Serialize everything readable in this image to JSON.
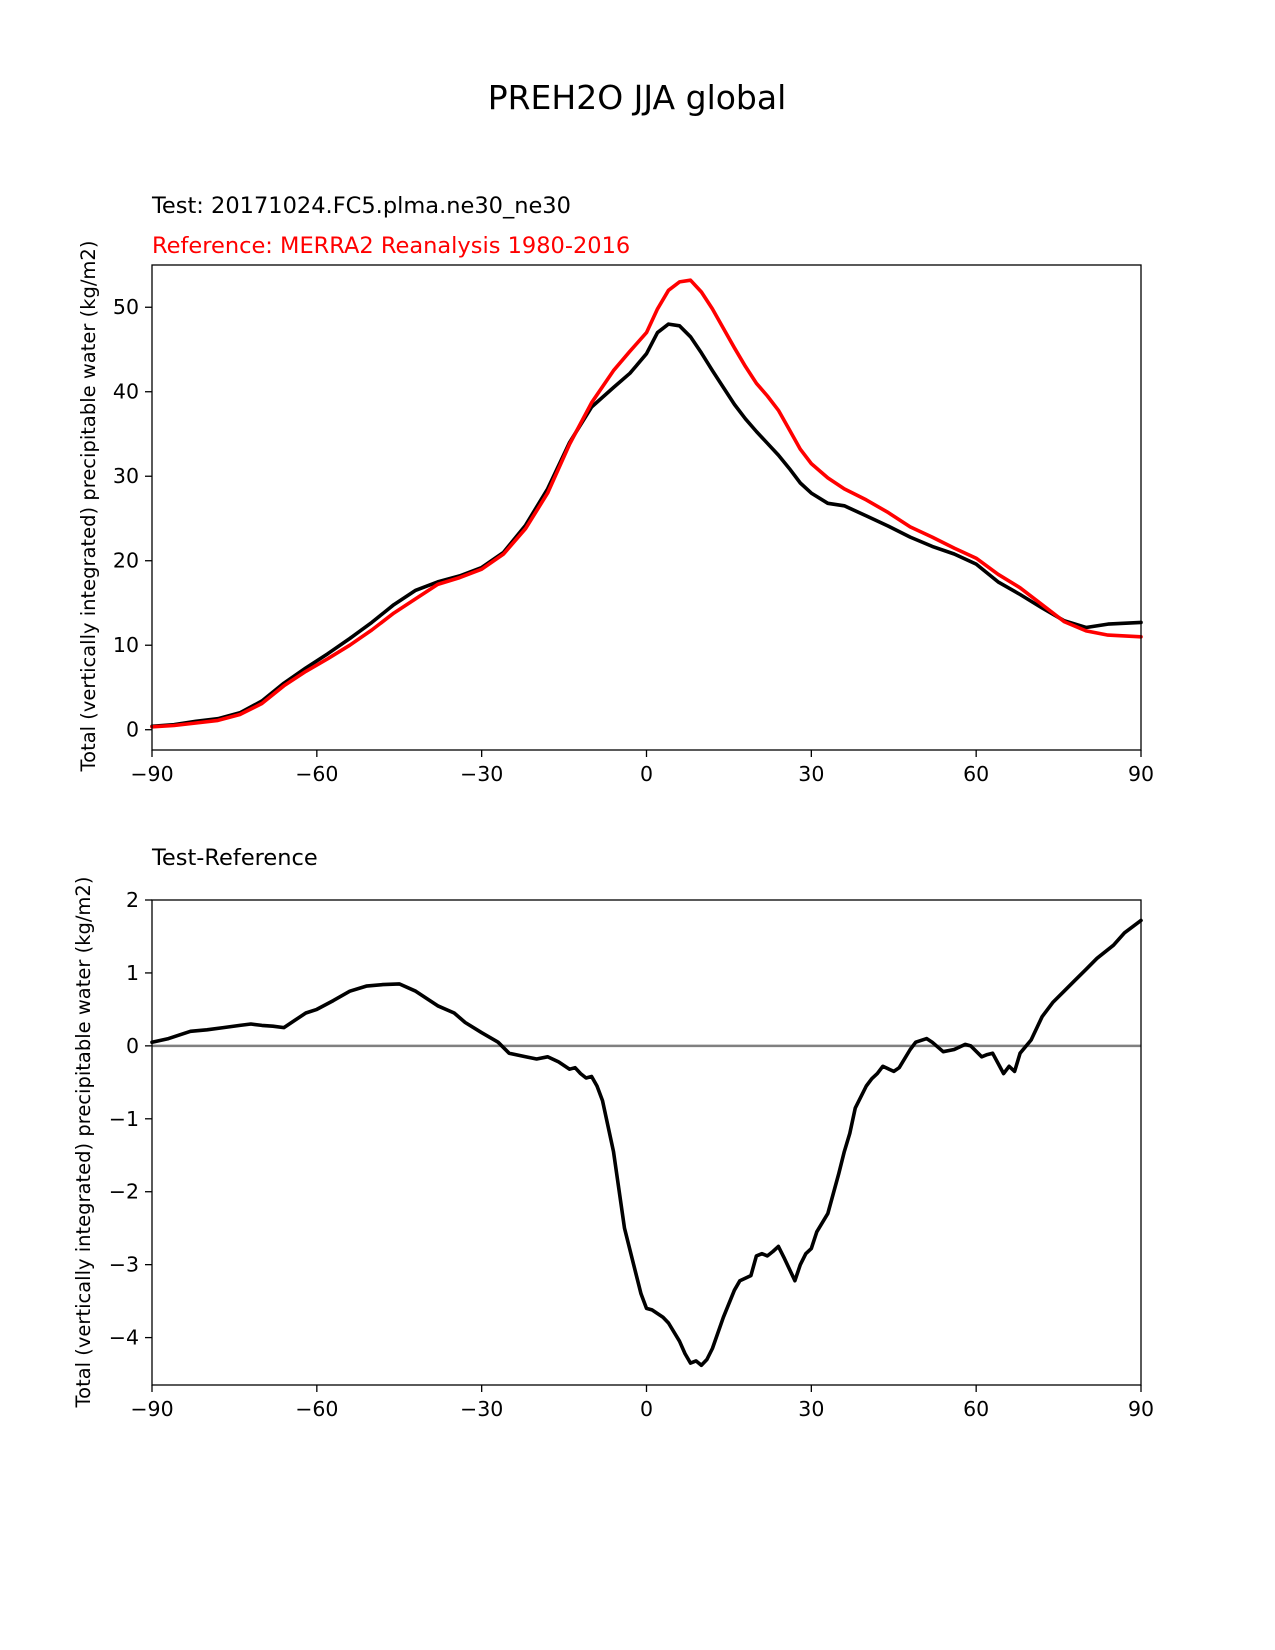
{
  "figure_title": "PREH2O JJA global",
  "colors": {
    "test": "#000000",
    "reference": "#ff0000",
    "zero_line": "#808080"
  },
  "chart_data": [
    {
      "type": "line",
      "test_label": "Test: 20171024.FC5.plma.ne30_ne30",
      "reference_label": "Reference: MERRA2 Reanalysis 1980-2016",
      "xlabel": "",
      "ylabel": "Total (vertically integrated) precipitable water (kg/m2)",
      "xlim": [
        -90,
        90
      ],
      "ylim": [
        -2.4,
        55
      ],
      "xticks": [
        -90,
        -60,
        -30,
        0,
        30,
        60,
        90
      ],
      "xtick_labels": [
        "−90",
        "−60",
        "−30",
        "0",
        "30",
        "60",
        "90"
      ],
      "yticks": [
        0,
        10,
        20,
        30,
        40,
        50
      ],
      "ytick_labels": [
        "0",
        "10",
        "20",
        "30",
        "40",
        "50"
      ],
      "series": [
        {
          "name": "Test",
          "color": "#000000",
          "x": [
            -90,
            -86,
            -82,
            -78,
            -74,
            -70,
            -66,
            -62,
            -58,
            -54,
            -50,
            -46,
            -42,
            -38,
            -34,
            -30,
            -26,
            -22,
            -18,
            -14,
            -10,
            -6,
            -3,
            0,
            2,
            4,
            6,
            8,
            10,
            12,
            14,
            16,
            18,
            20,
            22,
            24,
            26,
            28,
            30,
            33,
            36,
            40,
            44,
            48,
            52,
            56,
            60,
            64,
            68,
            72,
            76,
            80,
            84,
            90
          ],
          "values": [
            0.4,
            0.6,
            1.0,
            1.3,
            2.0,
            3.4,
            5.5,
            7.3,
            9.0,
            10.8,
            12.7,
            14.8,
            16.5,
            17.5,
            18.2,
            19.2,
            21.0,
            24.2,
            28.5,
            34.0,
            38.2,
            40.5,
            42.2,
            44.5,
            47.0,
            48.0,
            47.8,
            46.5,
            44.6,
            42.5,
            40.5,
            38.5,
            36.8,
            35.3,
            33.9,
            32.5,
            30.9,
            29.2,
            28.0,
            26.8,
            26.5,
            25.3,
            24.1,
            22.8,
            21.7,
            20.8,
            19.6,
            17.5,
            16.0,
            14.4,
            12.9,
            12.1,
            12.5,
            12.7
          ]
        },
        {
          "name": "Reference",
          "color": "#ff0000",
          "x": [
            -90,
            -86,
            -82,
            -78,
            -74,
            -70,
            -66,
            -62,
            -58,
            -54,
            -50,
            -46,
            -42,
            -38,
            -34,
            -30,
            -26,
            -22,
            -18,
            -14,
            -10,
            -6,
            -3,
            0,
            2,
            4,
            6,
            8,
            10,
            12,
            14,
            16,
            18,
            20,
            22,
            24,
            26,
            28,
            30,
            33,
            36,
            40,
            44,
            48,
            52,
            56,
            60,
            64,
            68,
            72,
            76,
            80,
            84,
            90
          ],
          "values": [
            0.35,
            0.5,
            0.8,
            1.1,
            1.8,
            3.1,
            5.2,
            6.9,
            8.4,
            10.0,
            11.8,
            13.8,
            15.5,
            17.2,
            18.0,
            19.0,
            20.8,
            23.8,
            28.0,
            33.8,
            38.7,
            42.5,
            44.8,
            47.0,
            49.8,
            52.0,
            53.0,
            53.2,
            51.8,
            49.8,
            47.5,
            45.2,
            43.0,
            41.0,
            39.5,
            37.8,
            35.5,
            33.2,
            31.5,
            29.8,
            28.5,
            27.2,
            25.7,
            24.0,
            22.8,
            21.5,
            20.3,
            18.4,
            16.8,
            14.8,
            12.8,
            11.7,
            11.2,
            11.0
          ]
        }
      ]
    },
    {
      "type": "line",
      "title": "Test-Reference",
      "xlabel": "",
      "ylabel": "Total (vertically integrated) precipitable water (kg/m2)",
      "xlim": [
        -90,
        90
      ],
      "ylim": [
        -4.65,
        2.0
      ],
      "xticks": [
        -90,
        -60,
        -30,
        0,
        30,
        60,
        90
      ],
      "xtick_labels": [
        "−90",
        "−60",
        "−30",
        "0",
        "30",
        "60",
        "90"
      ],
      "yticks": [
        -4,
        -3,
        -2,
        -1,
        0,
        1,
        2
      ],
      "ytick_labels": [
        "−4",
        "−3",
        "−2",
        "−1",
        "0",
        "1",
        "2"
      ],
      "zero_line": 0,
      "series": [
        {
          "name": "Test-Reference",
          "color": "#000000",
          "x": [
            -90,
            -87,
            -85,
            -83,
            -80,
            -77,
            -74,
            -72,
            -70,
            -68,
            -66,
            -64,
            -62,
            -60,
            -57,
            -54,
            -51,
            -48,
            -45,
            -42,
            -40,
            -38,
            -35,
            -33,
            -30,
            -27,
            -25,
            -22,
            -20,
            -18,
            -16,
            -14,
            -13,
            -12,
            -11,
            -10,
            -9,
            -8,
            -6,
            -4,
            -2,
            -1,
            0,
            1,
            3,
            4,
            6,
            7,
            8,
            9,
            10,
            11,
            12,
            14,
            16,
            17,
            19,
            20,
            21,
            22,
            23,
            24,
            25,
            27,
            28,
            29,
            30,
            31,
            33,
            35,
            36,
            37,
            38,
            40,
            41,
            42,
            43,
            45,
            46,
            48,
            49,
            51,
            52,
            54,
            56,
            58,
            59,
            61,
            62,
            63,
            65,
            66,
            67,
            68,
            70,
            72,
            74,
            76,
            78,
            80,
            82,
            85,
            87,
            90
          ],
          "values": [
            0.05,
            0.1,
            0.15,
            0.2,
            0.22,
            0.25,
            0.28,
            0.3,
            0.28,
            0.27,
            0.25,
            0.35,
            0.45,
            0.5,
            0.62,
            0.75,
            0.82,
            0.84,
            0.85,
            0.75,
            0.65,
            0.55,
            0.45,
            0.32,
            0.18,
            0.05,
            -0.1,
            -0.15,
            -0.18,
            -0.15,
            -0.22,
            -0.32,
            -0.3,
            -0.38,
            -0.44,
            -0.42,
            -0.55,
            -0.75,
            -1.45,
            -2.5,
            -3.1,
            -3.4,
            -3.6,
            -3.62,
            -3.72,
            -3.8,
            -4.05,
            -4.22,
            -4.35,
            -4.32,
            -4.38,
            -4.3,
            -4.15,
            -3.72,
            -3.35,
            -3.22,
            -3.15,
            -2.88,
            -2.85,
            -2.88,
            -2.82,
            -2.75,
            -2.9,
            -3.22,
            -3.0,
            -2.85,
            -2.78,
            -2.55,
            -2.3,
            -1.75,
            -1.45,
            -1.2,
            -0.85,
            -0.55,
            -0.45,
            -0.38,
            -0.28,
            -0.35,
            -0.3,
            -0.05,
            0.05,
            0.1,
            0.05,
            -0.08,
            -0.05,
            0.02,
            0.0,
            -0.15,
            -0.12,
            -0.1,
            -0.38,
            -0.28,
            -0.35,
            -0.1,
            0.08,
            0.4,
            0.6,
            0.75,
            0.9,
            1.05,
            1.2,
            1.38,
            1.55,
            1.72
          ]
        }
      ]
    }
  ]
}
